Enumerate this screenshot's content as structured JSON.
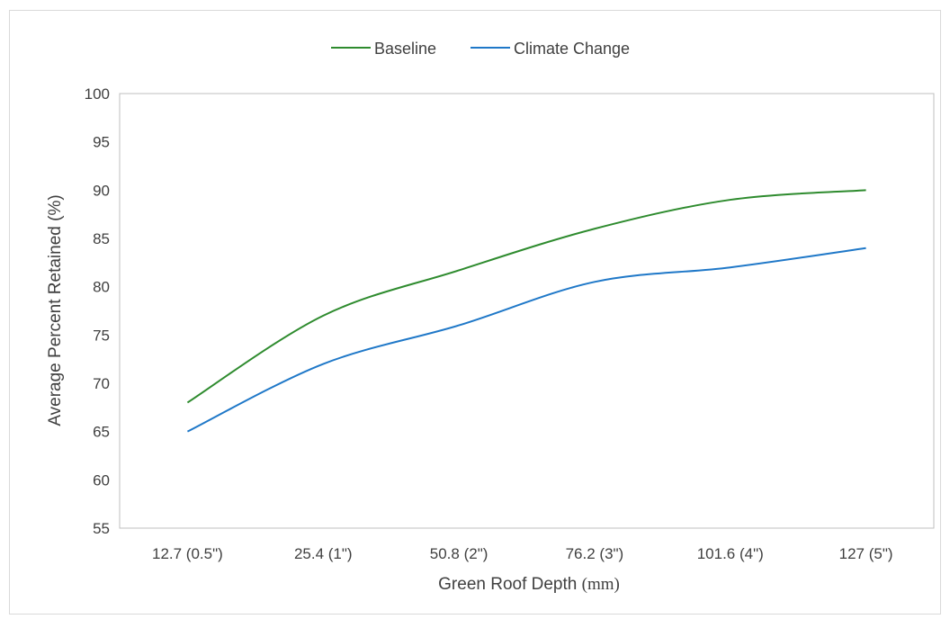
{
  "chart_data": {
    "type": "line",
    "title": "",
    "xlabel": "Green Roof Depth ",
    "xlabel_unit": "(mm)",
    "ylabel": "Average Percent Retained (%)",
    "categories": [
      "12.7 (0.5\")",
      "25.4 (1\")",
      "50.8 (2\")",
      "76.2 (3\")",
      "101.6 (4\")",
      "127 (5\")"
    ],
    "ylim": [
      55,
      100
    ],
    "yticks": [
      55,
      60,
      65,
      70,
      75,
      80,
      85,
      90,
      95,
      100
    ],
    "grid": false,
    "legend_position": "top",
    "series": [
      {
        "name": "Baseline",
        "color": "#2e8b2e",
        "values": [
          68,
          77,
          81.7,
          86,
          89,
          90
        ]
      },
      {
        "name": "Climate Change",
        "color": "#1f78c8",
        "values": [
          65,
          72,
          76,
          80.5,
          82,
          84
        ]
      }
    ]
  }
}
